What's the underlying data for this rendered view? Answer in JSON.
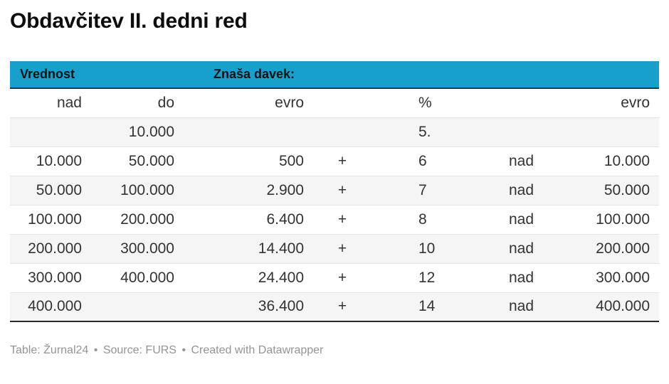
{
  "chart_data": {
    "type": "table",
    "title": "Obdavčitev II. dedni red",
    "header_groups": [
      {
        "label": "Vrednost",
        "colspan": 2
      },
      {
        "label": "Znaša davek:",
        "colspan": 5
      }
    ],
    "columns": [
      "nad",
      "do",
      "evro",
      "",
      "%",
      "",
      "evro"
    ],
    "rows": [
      [
        "",
        "10.000",
        "",
        "",
        "5.",
        "",
        ""
      ],
      [
        "10.000",
        "50.000",
        "500",
        "+",
        "6",
        "nad",
        "10.000"
      ],
      [
        "50.000",
        "100.000",
        "2.900",
        "+",
        "7",
        "nad",
        "50.000"
      ],
      [
        "100.000",
        "200.000",
        "6.400",
        "+",
        "8",
        "nad",
        "100.000"
      ],
      [
        "200.000",
        "300.000",
        "14.400",
        "+",
        "10",
        "nad",
        "200.000"
      ],
      [
        "300.000",
        "400.000",
        "24.400",
        "+",
        "12",
        "nad",
        "300.000"
      ],
      [
        "400.000",
        "",
        "36.400",
        "+",
        "14",
        "nad",
        "400.000"
      ]
    ],
    "layout_hints": {
      "striped_rows": true,
      "stripe_starts_at_row": 0,
      "column_alignments": [
        "right",
        "right",
        "right",
        "center",
        "left",
        "left",
        "right"
      ]
    }
  },
  "footer": {
    "table_label": "Table:",
    "table_value": "Žurnal24",
    "separator": "•",
    "source_label": "Source:",
    "source_value": "FURS",
    "credit": "Created with Datawrapper"
  },
  "colors": {
    "header_bg": "#18a0cd",
    "stripe_bg": "#f5f5f5",
    "dark_border": "#2b2b2b",
    "row_border": "#e4e4e4",
    "text": "#333333",
    "footer_text": "#949494"
  }
}
